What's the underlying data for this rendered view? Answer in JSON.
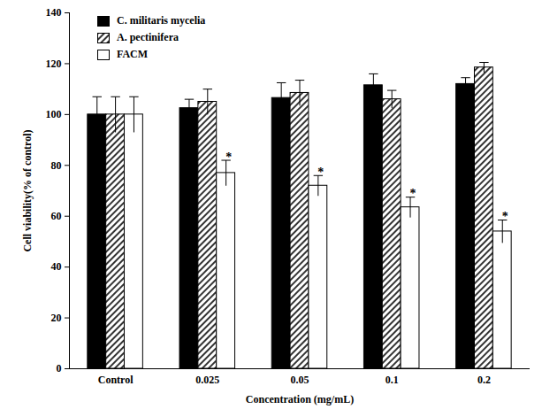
{
  "chart_data": {
    "type": "bar",
    "x_label": "Concentration (mg/mL)",
    "y_label": "Cell viability(% of control)",
    "categories": [
      "Control",
      "0.025",
      "0.05",
      "0.1",
      "0.2"
    ],
    "series": [
      {
        "name": "C. militaris mycelia",
        "color": "#000000",
        "values": [
          100,
          102.5,
          106.5,
          111.5,
          112
        ],
        "errors": [
          7,
          3.5,
          6,
          4.5,
          2.5
        ]
      },
      {
        "name": "A. pectinifera",
        "color": "#000000",
        "line_style": "hatched",
        "values": [
          100,
          105,
          108.5,
          106,
          118.5
        ],
        "errors": [
          7,
          5,
          5,
          3.5,
          2
        ]
      },
      {
        "name": "FACM",
        "color": "#ffffff",
        "values": [
          100,
          77,
          72,
          63.5,
          54
        ],
        "errors": [
          7,
          5,
          4,
          4,
          4.5
        ],
        "significance": [
          null,
          "*",
          "*",
          "*",
          "*"
        ]
      }
    ],
    "ylim": [
      0,
      140
    ],
    "yticks": [
      0,
      20,
      40,
      60,
      80,
      100,
      120,
      140
    ],
    "legend": "top-left"
  }
}
